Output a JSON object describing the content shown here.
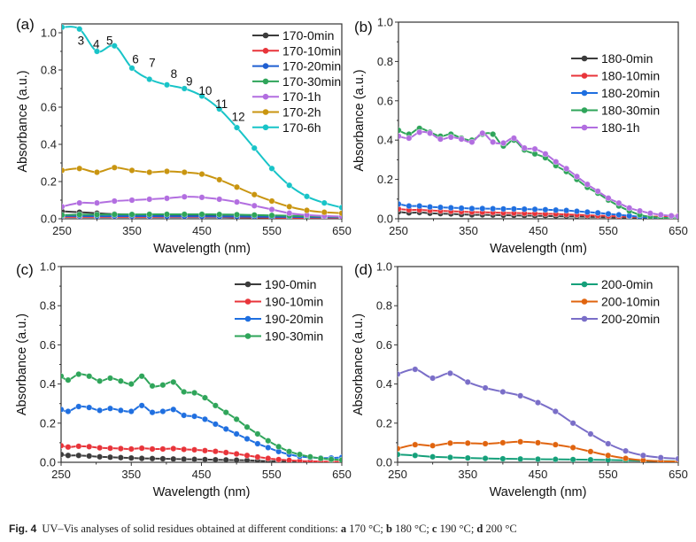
{
  "caption": {
    "label": "Fig. 4",
    "text_parts": [
      "UV–Vis analyses of solid residues obtained at different conditions: ",
      "a",
      " 170 °C; ",
      "b",
      " 180 °C; ",
      "c",
      " 190 °C; ",
      "d",
      " 200 °C"
    ]
  },
  "chart_data": [
    {
      "panel": "(a)",
      "type": "line",
      "xlabel": "Wavelength (nm)",
      "ylabel": "Absorbance (a.u.)",
      "xlim": [
        250,
        650
      ],
      "ylim": [
        0.0,
        1.05
      ],
      "xticks": [
        "250",
        "350",
        "450",
        "550",
        "650"
      ],
      "yticks": [
        "0.0",
        "0.2",
        "0.4",
        "0.6",
        "0.8",
        "1.0"
      ],
      "legend_position": "top-right",
      "annotations": [
        {
          "text": "3",
          "x": 277,
          "y": 0.96
        },
        {
          "text": "4",
          "x": 299,
          "y": 0.94
        },
        {
          "text": "5",
          "x": 318,
          "y": 0.96
        },
        {
          "text": "6",
          "x": 355,
          "y": 0.86
        },
        {
          "text": "7",
          "x": 379,
          "y": 0.84
        },
        {
          "text": "8",
          "x": 410,
          "y": 0.78
        },
        {
          "text": "9",
          "x": 432,
          "y": 0.74
        },
        {
          "text": "10",
          "x": 455,
          "y": 0.69
        },
        {
          "text": "11",
          "x": 478,
          "y": 0.62
        },
        {
          "text": "12",
          "x": 502,
          "y": 0.55
        }
      ],
      "x": [
        250,
        275,
        300,
        325,
        350,
        375,
        400,
        425,
        450,
        475,
        500,
        525,
        550,
        575,
        600,
        625,
        650
      ],
      "series": [
        {
          "name": "170-0min",
          "color": "#3c3c3c",
          "values": [
            0.04,
            0.035,
            0.03,
            0.025,
            0.022,
            0.02,
            0.018,
            0.016,
            0.015,
            0.014,
            0.013,
            0.012,
            0.011,
            0.01,
            0.009,
            0.008,
            0.007
          ]
        },
        {
          "name": "170-10min",
          "color": "#e8343a",
          "values": [
            0.01,
            0.01,
            0.01,
            0.01,
            0.01,
            0.01,
            0.01,
            0.01,
            0.01,
            0.01,
            0.008,
            0.007,
            0.006,
            0.005,
            0.004,
            0.004,
            0.003
          ]
        },
        {
          "name": "170-20min",
          "color": "#1f5fd1",
          "values": [
            0.015,
            0.015,
            0.014,
            0.014,
            0.014,
            0.014,
            0.013,
            0.013,
            0.013,
            0.012,
            0.012,
            0.011,
            0.01,
            0.01,
            0.009,
            0.008,
            0.008
          ]
        },
        {
          "name": "170-30min",
          "color": "#2fa55a",
          "values": [
            0.02,
            0.022,
            0.022,
            0.023,
            0.023,
            0.024,
            0.024,
            0.024,
            0.024,
            0.023,
            0.022,
            0.02,
            0.018,
            0.016,
            0.014,
            0.012,
            0.01
          ]
        },
        {
          "name": "170-1h",
          "color": "#b26ee0",
          "values": [
            0.065,
            0.085,
            0.085,
            0.095,
            0.1,
            0.105,
            0.11,
            0.118,
            0.115,
            0.105,
            0.09,
            0.07,
            0.05,
            0.03,
            0.02,
            0.015,
            0.012
          ]
        },
        {
          "name": "170-2h",
          "color": "#c99510",
          "values": [
            0.26,
            0.27,
            0.25,
            0.275,
            0.26,
            0.25,
            0.255,
            0.25,
            0.24,
            0.21,
            0.17,
            0.13,
            0.095,
            0.065,
            0.045,
            0.035,
            0.03
          ]
        },
        {
          "name": "170-6h",
          "color": "#18c4c8",
          "values": [
            1.03,
            1.02,
            0.9,
            0.93,
            0.81,
            0.75,
            0.72,
            0.7,
            0.66,
            0.59,
            0.49,
            0.38,
            0.27,
            0.18,
            0.12,
            0.085,
            0.06
          ]
        }
      ]
    },
    {
      "panel": "(b)",
      "type": "line",
      "xlabel": "Wavelength (nm)",
      "ylabel": "Absorbance (a.u.)",
      "xlim": [
        250,
        650
      ],
      "ylim": [
        0.0,
        1.0
      ],
      "xticks": [
        "250",
        "350",
        "450",
        "550",
        "650"
      ],
      "yticks": [
        "0.0",
        "0.2",
        "0.4",
        "0.6",
        "0.8",
        "1.0"
      ],
      "legend_position": "top-right",
      "x": [
        250,
        265,
        280,
        295,
        310,
        325,
        340,
        355,
        370,
        385,
        400,
        415,
        430,
        445,
        460,
        475,
        490,
        505,
        520,
        535,
        550,
        565,
        580,
        595,
        610,
        625,
        640,
        650
      ],
      "series": [
        {
          "name": "180-0min",
          "color": "#3c3c3c",
          "values": [
            0.035,
            0.03,
            0.032,
            0.028,
            0.026,
            0.025,
            0.022,
            0.02,
            0.02,
            0.019,
            0.018,
            0.017,
            0.016,
            0.015,
            0.014,
            0.013,
            0.012,
            0.011,
            0.01,
            0.009,
            0.008,
            0.007,
            0.006,
            0.005,
            0.004,
            0.004,
            0.003,
            0.003
          ]
        },
        {
          "name": "180-10min",
          "color": "#e8343a",
          "values": [
            0.05,
            0.045,
            0.045,
            0.042,
            0.04,
            0.038,
            0.036,
            0.034,
            0.033,
            0.032,
            0.03,
            0.029,
            0.028,
            0.027,
            0.025,
            0.024,
            0.022,
            0.02,
            0.018,
            0.016,
            0.014,
            0.012,
            0.01,
            0.008,
            0.01,
            0.012,
            0.015,
            0.015
          ]
        },
        {
          "name": "180-20min",
          "color": "#1f6fe0",
          "values": [
            0.075,
            0.065,
            0.065,
            0.06,
            0.058,
            0.056,
            0.054,
            0.052,
            0.052,
            0.051,
            0.05,
            0.05,
            0.049,
            0.048,
            0.046,
            0.044,
            0.042,
            0.038,
            0.034,
            0.03,
            0.025,
            0.02,
            0.015,
            0.01,
            0.006,
            0.005,
            0.004,
            0.004
          ]
        },
        {
          "name": "180-30min",
          "color": "#2fa55a",
          "values": [
            0.45,
            0.43,
            0.46,
            0.44,
            0.42,
            0.43,
            0.41,
            0.4,
            0.43,
            0.43,
            0.37,
            0.4,
            0.35,
            0.33,
            0.31,
            0.27,
            0.24,
            0.2,
            0.16,
            0.13,
            0.095,
            0.065,
            0.04,
            0.02,
            0.01,
            0.005,
            0.003,
            0.003
          ]
        },
        {
          "name": "180-1h",
          "color": "#b26ee0",
          "values": [
            0.42,
            0.41,
            0.44,
            0.435,
            0.405,
            0.415,
            0.405,
            0.39,
            0.435,
            0.39,
            0.385,
            0.41,
            0.36,
            0.355,
            0.33,
            0.29,
            0.255,
            0.215,
            0.175,
            0.14,
            0.105,
            0.08,
            0.055,
            0.04,
            0.028,
            0.02,
            0.015,
            0.013
          ]
        }
      ]
    },
    {
      "panel": "(c)",
      "type": "line",
      "xlabel": "Wavelength (nm)",
      "ylabel": "Absorbance (a.u.)",
      "xlim": [
        250,
        650
      ],
      "ylim": [
        0.0,
        1.0
      ],
      "xticks": [
        "250",
        "350",
        "450",
        "550",
        "650"
      ],
      "yticks": [
        "0.0",
        "0.2",
        "0.4",
        "0.6",
        "0.8",
        "1.0"
      ],
      "legend_position": "top-right",
      "x": [
        250,
        260,
        275,
        290,
        305,
        320,
        335,
        350,
        365,
        380,
        395,
        410,
        425,
        440,
        455,
        470,
        485,
        500,
        515,
        530,
        545,
        560,
        575,
        590,
        605,
        620,
        635,
        650
      ],
      "series": [
        {
          "name": "190-0min",
          "color": "#3c3c3c",
          "values": [
            0.04,
            0.035,
            0.035,
            0.032,
            0.028,
            0.026,
            0.024,
            0.022,
            0.02,
            0.019,
            0.018,
            0.017,
            0.016,
            0.015,
            0.014,
            0.013,
            0.012,
            0.011,
            0.01,
            0.008,
            0.006,
            0.005,
            0.004,
            0.003,
            0.003,
            0.002,
            0.002,
            0.002
          ]
        },
        {
          "name": "190-10min",
          "color": "#e8343a",
          "values": [
            0.085,
            0.078,
            0.082,
            0.08,
            0.074,
            0.072,
            0.07,
            0.068,
            0.072,
            0.068,
            0.068,
            0.07,
            0.066,
            0.064,
            0.06,
            0.056,
            0.05,
            0.043,
            0.035,
            0.027,
            0.02,
            0.014,
            0.01,
            0.007,
            0.005,
            0.004,
            0.003,
            0.003
          ]
        },
        {
          "name": "190-20min",
          "color": "#1f6fe0",
          "values": [
            0.27,
            0.26,
            0.285,
            0.28,
            0.265,
            0.275,
            0.265,
            0.26,
            0.29,
            0.255,
            0.26,
            0.27,
            0.24,
            0.235,
            0.22,
            0.195,
            0.17,
            0.145,
            0.12,
            0.095,
            0.075,
            0.055,
            0.04,
            0.03,
            0.025,
            0.022,
            0.022,
            0.025
          ]
        },
        {
          "name": "190-30min",
          "color": "#2fa55a",
          "values": [
            0.44,
            0.42,
            0.45,
            0.44,
            0.415,
            0.43,
            0.415,
            0.4,
            0.44,
            0.39,
            0.395,
            0.41,
            0.36,
            0.355,
            0.33,
            0.29,
            0.255,
            0.22,
            0.18,
            0.145,
            0.11,
            0.08,
            0.055,
            0.04,
            0.028,
            0.02,
            0.015,
            0.012
          ]
        }
      ]
    },
    {
      "panel": "(d)",
      "type": "line",
      "xlabel": "Wavelength (nm)",
      "ylabel": "Absorbance (a.u.)",
      "xlim": [
        250,
        650
      ],
      "ylim": [
        0.0,
        1.0
      ],
      "xticks": [
        "250",
        "350",
        "450",
        "550",
        "650"
      ],
      "yticks": [
        "0.0",
        "0.2",
        "0.4",
        "0.6",
        "0.8",
        "1.0"
      ],
      "legend_position": "top-right",
      "x": [
        250,
        275,
        300,
        325,
        350,
        375,
        400,
        425,
        450,
        475,
        500,
        525,
        550,
        575,
        600,
        625,
        650
      ],
      "series": [
        {
          "name": "200-0min",
          "color": "#15a07a",
          "values": [
            0.04,
            0.035,
            0.028,
            0.025,
            0.022,
            0.02,
            0.018,
            0.017,
            0.016,
            0.015,
            0.014,
            0.013,
            0.012,
            0.01,
            0.008,
            0.006,
            0.005
          ]
        },
        {
          "name": "200-10min",
          "color": "#e0640f",
          "values": [
            0.07,
            0.09,
            0.085,
            0.098,
            0.098,
            0.095,
            0.1,
            0.105,
            0.1,
            0.09,
            0.075,
            0.055,
            0.035,
            0.02,
            0.01,
            0.005,
            0.004
          ]
        },
        {
          "name": "200-20min",
          "color": "#7a6ec8",
          "values": [
            0.45,
            0.475,
            0.43,
            0.455,
            0.41,
            0.38,
            0.36,
            0.34,
            0.305,
            0.26,
            0.2,
            0.145,
            0.095,
            0.058,
            0.035,
            0.024,
            0.018
          ]
        }
      ]
    }
  ]
}
